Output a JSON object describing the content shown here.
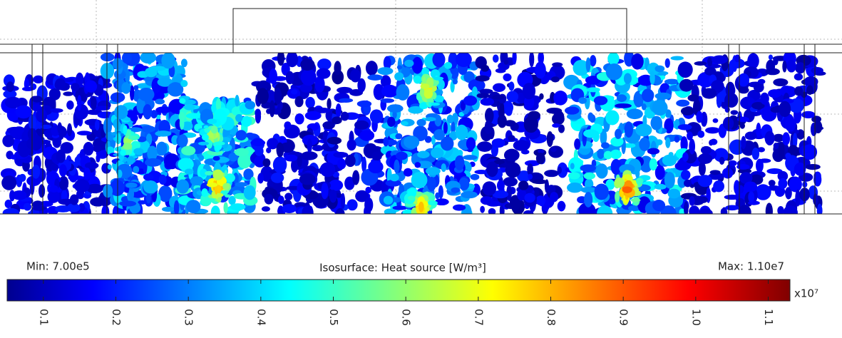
{
  "chart_data": {
    "type": "colorbar",
    "title": "Isosurface: Heat source [W/m³]",
    "min_label": "Min: 7.00e5",
    "max_label": "Max: 1.10e7",
    "multiplier": "x10⁷",
    "clim": [
      0.05,
      1.13
    ],
    "ticks": [
      0.1,
      0.2,
      0.3,
      0.4,
      0.5,
      0.6,
      0.7,
      0.8,
      0.9,
      {
        "value": 1,
        "label": "1.0"
      },
      1.1
    ]
  }
}
